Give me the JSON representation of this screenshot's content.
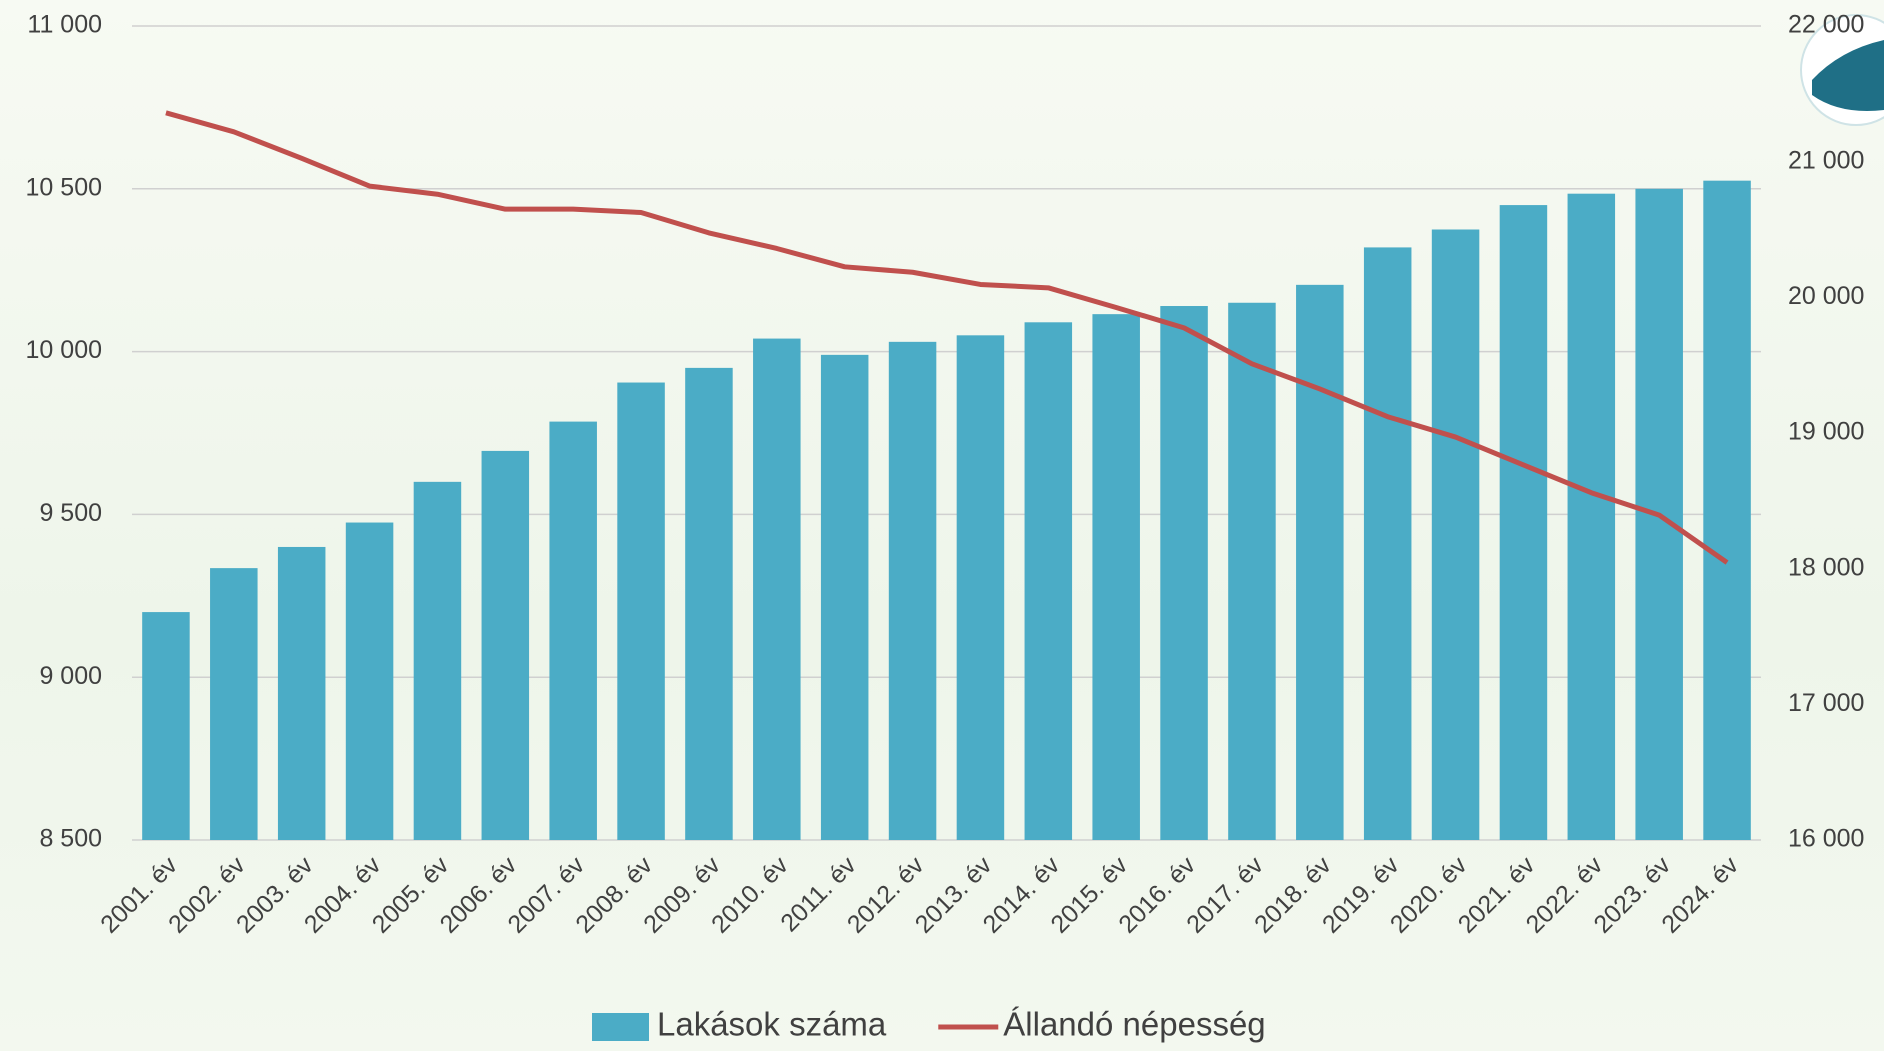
{
  "chart_data": {
    "type": "bar_line",
    "categories": [
      "2001. év",
      "2002. év",
      "2003. év",
      "2004. év",
      "2005. év",
      "2006. év",
      "2007. év",
      "2008. év",
      "2009. év",
      "2010. év",
      "2011. év",
      "2012. év",
      "2013. év",
      "2014. év",
      "2015. év",
      "2016. év",
      "2017. év",
      "2018. év",
      "2019. év",
      "2020. év",
      "2021. év",
      "2022. év",
      "2023. év",
      "2024. év"
    ],
    "series": [
      {
        "name": "Lakások száma",
        "type": "bar",
        "color": "#4bacc6",
        "values": [
          9200,
          9335,
          9400,
          9475,
          9600,
          9695,
          9785,
          9905,
          9950,
          10040,
          9990,
          10030,
          10050,
          10090,
          10115,
          10140,
          10150,
          10205,
          10320,
          10375,
          10450,
          10485,
          10500,
          10525
        ]
      },
      {
        "name": "Állandó népesség",
        "type": "line",
        "axis": "y2",
        "color": "#c0504d",
        "values": [
          21360,
          21220,
          21025,
          20820,
          20760,
          20650,
          20650,
          20625,
          20475,
          20360,
          20225,
          20185,
          20095,
          20070,
          19925,
          19775,
          19510,
          19325,
          19120,
          18970,
          18765,
          18560,
          18395,
          18045
        ]
      }
    ],
    "ylim": [
      8500,
      11000
    ],
    "yticks": [
      {
        "value": 8500,
        "label": "8 500"
      },
      {
        "value": 9000,
        "label": "9 000"
      },
      {
        "value": 9500,
        "label": "9 500"
      },
      {
        "value": 10000,
        "label": "10 000"
      },
      {
        "value": 10500,
        "label": "10 500"
      },
      {
        "value": 11000,
        "label": "11 000"
      }
    ],
    "y2lim": [
      16000,
      22000
    ],
    "y2ticks": [
      {
        "value": 16000,
        "label": "16 000"
      },
      {
        "value": 17000,
        "label": "17 000"
      },
      {
        "value": 18000,
        "label": "18 000"
      },
      {
        "value": 19000,
        "label": "19 000"
      },
      {
        "value": 20000,
        "label": "20 000"
      },
      {
        "value": 21000,
        "label": "21 000"
      },
      {
        "value": 22000,
        "label": "22 000"
      }
    ],
    "grid": true,
    "legend": "bottom"
  }
}
